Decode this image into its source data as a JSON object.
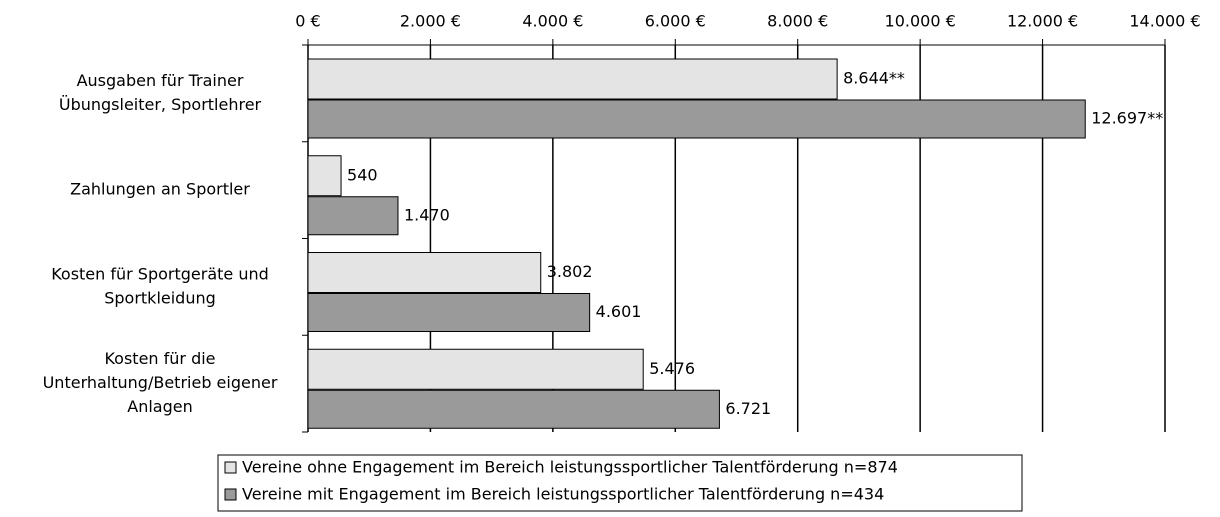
{
  "chart_data": {
    "type": "bar",
    "orientation": "horizontal",
    "categories": [
      [
        "Ausgaben für Trainer",
        "Übungsleiter, Sportlehrer"
      ],
      [
        "Zahlungen an Sportler"
      ],
      [
        "Kosten für Sportgeräte und",
        "Sportkleidung"
      ],
      [
        "Kosten für die",
        "Unterhaltung/Betrieb eigener",
        "Anlagen"
      ]
    ],
    "series": [
      {
        "name": "Vereine ohne Engagement im Bereich leistungssportlicher Talentförderung n=874",
        "color": "#e4e4e4",
        "values": [
          8644,
          540,
          3802,
          5476
        ],
        "value_labels": [
          "8.644**",
          "540",
          "3.802",
          "5.476"
        ]
      },
      {
        "name": "Vereine mit Engagement im Bereich leistungssportlicher Talentförderung n=434",
        "color": "#9a9a9a",
        "values": [
          12697,
          1470,
          4601,
          6721
        ],
        "value_labels": [
          "12.697**",
          "1.470",
          "4.601",
          "6.721"
        ]
      }
    ],
    "xlim": [
      0,
      14000
    ],
    "xticks": [
      {
        "value": 0,
        "label": "0 €"
      },
      {
        "value": 2000,
        "label": "2.000 €"
      },
      {
        "value": 4000,
        "label": "4.000 €"
      },
      {
        "value": 6000,
        "label": "6.000 €"
      },
      {
        "value": 8000,
        "label": "8.000 €"
      },
      {
        "value": 10000,
        "label": "10.000 €"
      },
      {
        "value": 12000,
        "label": "12.000 €"
      },
      {
        "value": 14000,
        "label": "14.000 €"
      }
    ],
    "grid": true,
    "legend": "bottom"
  }
}
